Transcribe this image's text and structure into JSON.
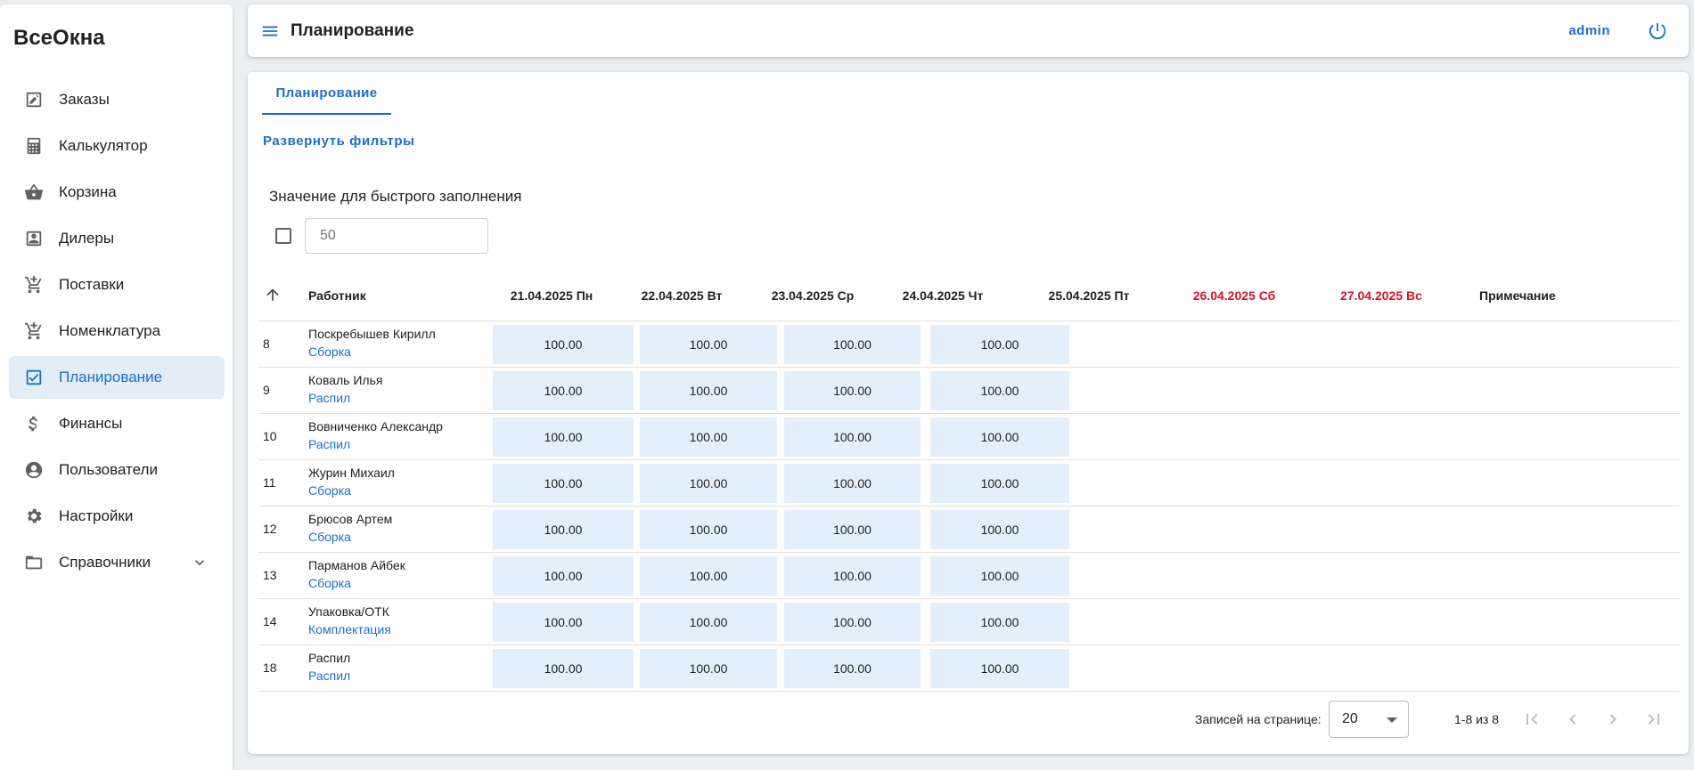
{
  "app": {
    "logo": "ВсеОкна"
  },
  "sidebar": {
    "items": [
      {
        "label": "Заказы",
        "icon": "edit-square-icon"
      },
      {
        "label": "Калькулятор",
        "icon": "calculator-icon"
      },
      {
        "label": "Корзина",
        "icon": "basket-icon"
      },
      {
        "label": "Дилеры",
        "icon": "contact-card-icon"
      },
      {
        "label": "Поставки",
        "icon": "cart-plus-icon"
      },
      {
        "label": "Номенклатура",
        "icon": "cart-plus-icon"
      },
      {
        "label": "Планирование",
        "icon": "checkbox-icon",
        "active": true
      },
      {
        "label": "Финансы",
        "icon": "dollar-icon"
      },
      {
        "label": "Пользователи",
        "icon": "user-circle-icon"
      },
      {
        "label": "Настройки",
        "icon": "gear-icon"
      },
      {
        "label": "Справочники",
        "icon": "folder-open-icon",
        "expandable": true
      }
    ]
  },
  "header": {
    "title": "Планирование",
    "user": "admin"
  },
  "main": {
    "tab": "Планирование",
    "filters_link": "Развернуть фильтры",
    "quick_fill": {
      "label": "Значение для быстрого заполнения",
      "placeholder": "50",
      "checked": false
    }
  },
  "table": {
    "columns": {
      "worker": "Работник",
      "days": [
        "21.04.2025 Пн",
        "22.04.2025 Вт",
        "23.04.2025 Ср",
        "24.04.2025 Чт",
        "25.04.2025 Пт",
        "26.04.2025 Сб",
        "27.04.2025 Вс"
      ],
      "weekend_days": [
        5,
        6
      ],
      "note": "Примечание"
    },
    "rows": [
      {
        "id": "8",
        "name": "Поскребышев Кирилл",
        "role": "Сборка",
        "values": [
          "100.00",
          "100.00",
          "100.00",
          "100.00"
        ]
      },
      {
        "id": "9",
        "name": "Коваль Илья",
        "role": "Распил",
        "values": [
          "100.00",
          "100.00",
          "100.00",
          "100.00"
        ]
      },
      {
        "id": "10",
        "name": "Вовниченко Александр",
        "role": "Распил",
        "values": [
          "100.00",
          "100.00",
          "100.00",
          "100.00"
        ]
      },
      {
        "id": "11",
        "name": "Журин Михаил",
        "role": "Сборка",
        "values": [
          "100.00",
          "100.00",
          "100.00",
          "100.00"
        ]
      },
      {
        "id": "12",
        "name": "Брюсов Артем",
        "role": "Сборка",
        "values": [
          "100.00",
          "100.00",
          "100.00",
          "100.00"
        ]
      },
      {
        "id": "13",
        "name": "Парманов Айбек",
        "role": "Сборка",
        "values": [
          "100.00",
          "100.00",
          "100.00",
          "100.00"
        ]
      },
      {
        "id": "14",
        "name": "Упаковка/ОТК",
        "role": "Комплектация",
        "values": [
          "100.00",
          "100.00",
          "100.00",
          "100.00"
        ]
      },
      {
        "id": "18",
        "name": "Распил",
        "role": "Распил",
        "values": [
          "100.00",
          "100.00",
          "100.00",
          "100.00"
        ]
      }
    ]
  },
  "pagination": {
    "per_page_label": "Записей на странице:",
    "per_page": "20",
    "range": "1-8 из 8"
  },
  "colors": {
    "accent": "#1e6ec4",
    "weekend": "#d3122d",
    "cell_bg": "#e3f0fc",
    "active_nav_bg": "#e3edf8"
  }
}
